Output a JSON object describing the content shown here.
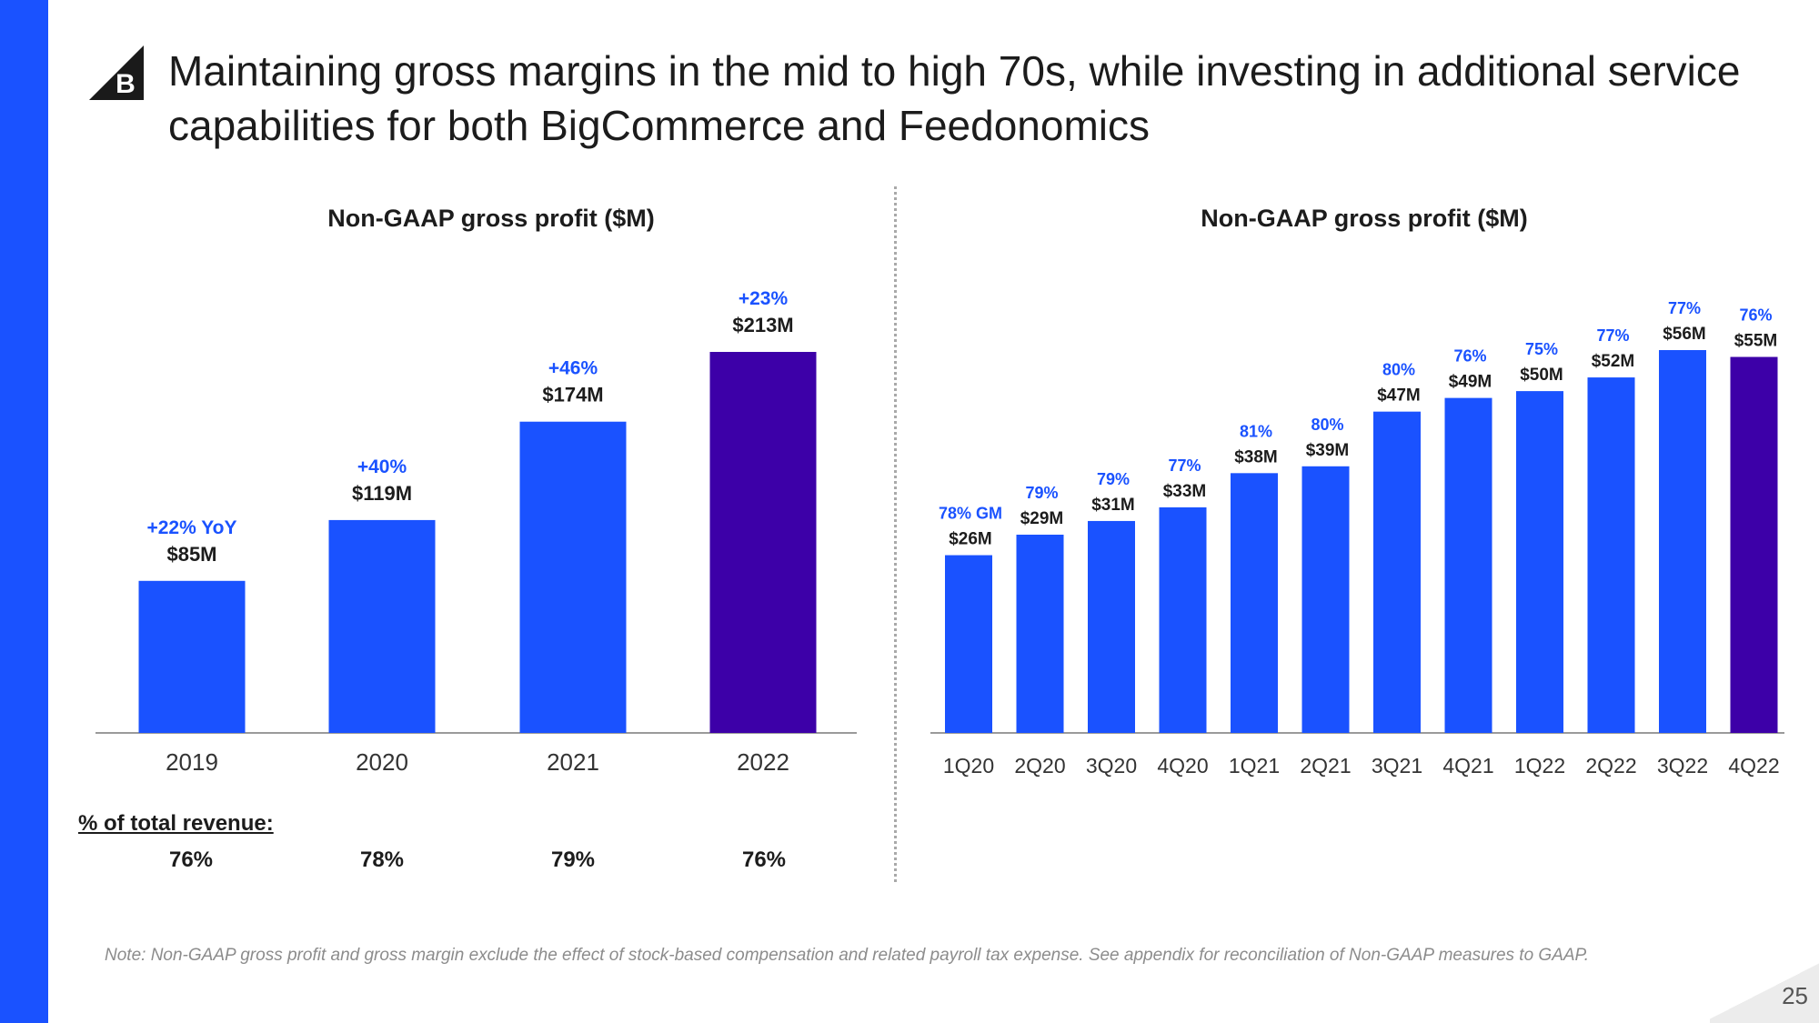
{
  "slide": {
    "title": "Maintaining gross margins in the mid to high 70s, while investing in additional service capabilities for both BigCommerce and Feedonomics",
    "logo_letter": "B",
    "pct_label": "% of total revenue:",
    "note": "Note: Non-GAAP gross profit and gross margin exclude the effect of stock-based compensation and related payroll tax expense. See appendix for reconciliation of Non-GAAP measures to GAAP.",
    "page_number": "25"
  },
  "colors": {
    "accent": "#1a52ff",
    "highlight": "#3d00a8",
    "bar_text": "#1a52ff"
  },
  "chart_data": [
    {
      "type": "bar",
      "title": "Non-GAAP gross profit ($M)",
      "categories": [
        "2019",
        "2020",
        "2021",
        "2022"
      ],
      "values": [
        85,
        119,
        174,
        213
      ],
      "value_labels": [
        "$85M",
        "$119M",
        "$174M",
        "$213M"
      ],
      "growth_labels": [
        "+22% YoY",
        "+40%",
        "+46%",
        "+23%"
      ],
      "pct_of_revenue": [
        "76%",
        "78%",
        "79%",
        "76%"
      ],
      "highlight_index": 3,
      "ylim": [
        0,
        213
      ]
    },
    {
      "type": "bar",
      "title": "Non-GAAP gross profit ($M)",
      "categories": [
        "1Q20",
        "2Q20",
        "3Q20",
        "4Q20",
        "1Q21",
        "2Q21",
        "3Q21",
        "4Q21",
        "1Q22",
        "2Q22",
        "3Q22",
        "4Q22"
      ],
      "values": [
        26,
        29,
        31,
        33,
        38,
        39,
        47,
        49,
        50,
        52,
        56,
        55
      ],
      "value_labels": [
        "$26M",
        "$29M",
        "$31M",
        "$33M",
        "$38M",
        "$39M",
        "$47M",
        "$49M",
        "$50M",
        "$52M",
        "$56M",
        "$55M"
      ],
      "margin_labels": [
        "78% GM",
        "79%",
        "79%",
        "77%",
        "81%",
        "80%",
        "80%",
        "76%",
        "75%",
        "77%",
        "77%",
        "76%"
      ],
      "highlight_index": 11,
      "ylim": [
        0,
        56
      ]
    }
  ]
}
